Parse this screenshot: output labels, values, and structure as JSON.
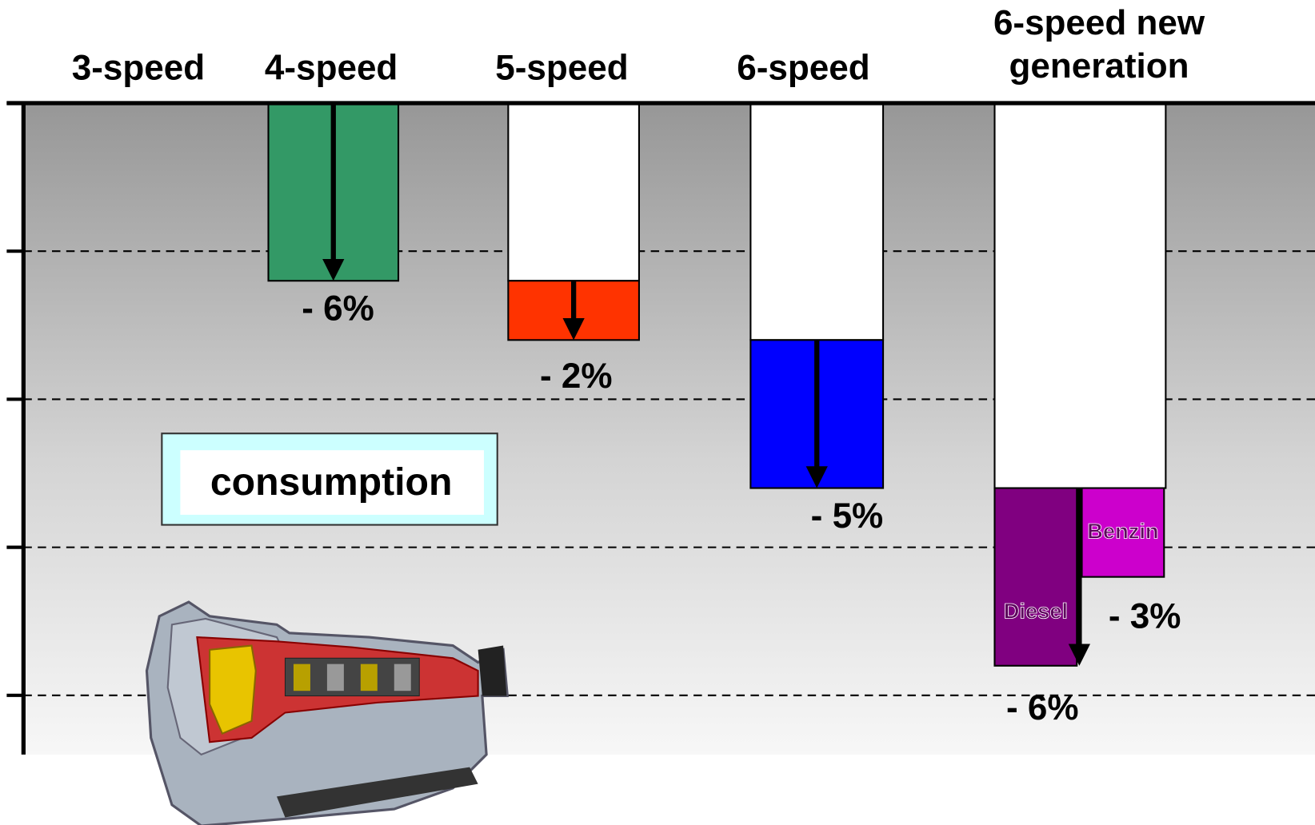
{
  "chart_data": {
    "type": "waterfall",
    "categories": [
      "3-speed",
      "4-speed",
      "5-speed",
      "6-speed",
      "6-speed new generation"
    ],
    "values": [
      null,
      -6,
      -2,
      -5,
      null
    ],
    "value_labels": [
      null,
      "- 6%",
      "- 2%",
      "- 5%",
      null
    ],
    "colors": [
      null,
      "#339966",
      "#ff3300",
      "#0000ff",
      null
    ],
    "final_split": [
      {
        "name": "Diesel",
        "value": -6,
        "value_label": "- 6%",
        "color": "#800080"
      },
      {
        "name": "Benzin",
        "value": -3,
        "value_label": "- 3%",
        "color": "#cc00cc"
      }
    ],
    "annotation": "consumption",
    "ylim": [
      -22,
      0
    ],
    "yticks": [
      0,
      -5,
      -10,
      -15,
      -20
    ],
    "grid": true
  }
}
